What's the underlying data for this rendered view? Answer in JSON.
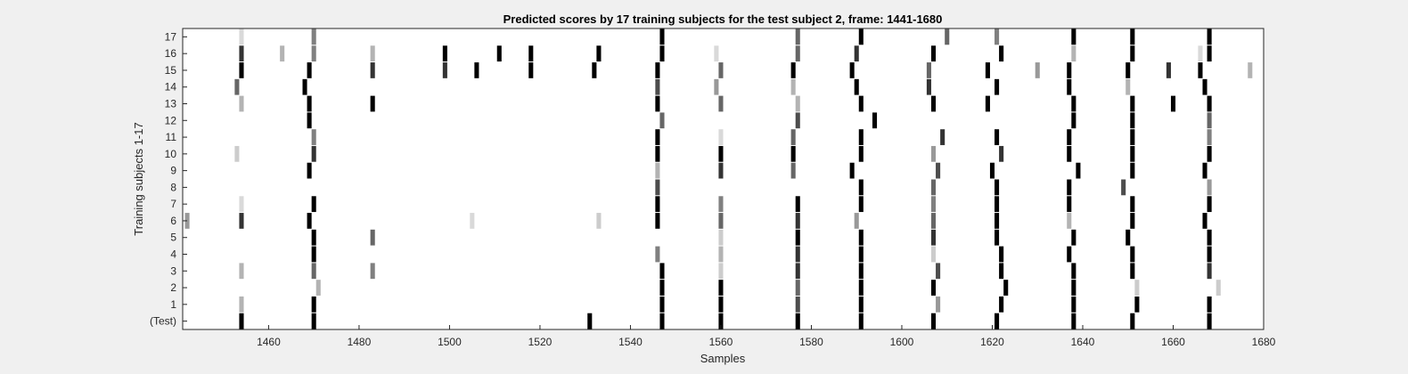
{
  "chart_data": {
    "type": "heatmap",
    "title": "Predicted scores by 17 training subjects for the test subject 2, frame: 1441-1680",
    "xlabel": "Samples",
    "ylabel": "Training subjects 1-17",
    "xlim": [
      1441,
      1680
    ],
    "xticks": [
      1460,
      1480,
      1500,
      1520,
      1540,
      1560,
      1580,
      1600,
      1620,
      1640,
      1660,
      1680
    ],
    "rows": [
      "(Test)",
      "1",
      "2",
      "3",
      "4",
      "5",
      "6",
      "7",
      "8",
      "9",
      "10",
      "11",
      "12",
      "13",
      "14",
      "15",
      "16",
      "17"
    ],
    "value_range": [
      0,
      1
    ],
    "colormap": "white-to-black (1 = black)",
    "grid": false,
    "cells": [
      [
        0,
        1454,
        1
      ],
      [
        0,
        1470,
        1
      ],
      [
        0,
        1531,
        1
      ],
      [
        0,
        1547,
        1
      ],
      [
        0,
        1560,
        1
      ],
      [
        0,
        1577,
        1
      ],
      [
        0,
        1591,
        1
      ],
      [
        0,
        1607,
        1
      ],
      [
        0,
        1621,
        1
      ],
      [
        0,
        1638,
        1
      ],
      [
        0,
        1651,
        1
      ],
      [
        0,
        1668,
        1
      ],
      [
        1,
        1454,
        0.3
      ],
      [
        1,
        1470,
        1
      ],
      [
        1,
        1547,
        1
      ],
      [
        1,
        1560,
        1
      ],
      [
        1,
        1577,
        0.7
      ],
      [
        1,
        1591,
        1
      ],
      [
        1,
        1608,
        0.4
      ],
      [
        1,
        1622,
        1
      ],
      [
        1,
        1638,
        1
      ],
      [
        1,
        1652,
        1
      ],
      [
        1,
        1668,
        1
      ],
      [
        2,
        1471,
        0.3
      ],
      [
        2,
        1547,
        1
      ],
      [
        2,
        1560,
        1
      ],
      [
        2,
        1577,
        0.6
      ],
      [
        2,
        1591,
        1
      ],
      [
        2,
        1607,
        1
      ],
      [
        2,
        1623,
        1
      ],
      [
        2,
        1638,
        1
      ],
      [
        2,
        1652,
        0.2
      ],
      [
        2,
        1670,
        0.2
      ],
      [
        3,
        1454,
        0.3
      ],
      [
        3,
        1470,
        0.6
      ],
      [
        3,
        1483,
        0.5
      ],
      [
        3,
        1547,
        1
      ],
      [
        3,
        1560,
        0.2
      ],
      [
        3,
        1577,
        0.8
      ],
      [
        3,
        1591,
        1
      ],
      [
        3,
        1608,
        0.7
      ],
      [
        3,
        1622,
        1
      ],
      [
        3,
        1638,
        1
      ],
      [
        3,
        1651,
        1
      ],
      [
        3,
        1668,
        0.8
      ],
      [
        4,
        1470,
        1
      ],
      [
        4,
        1546,
        0.5
      ],
      [
        4,
        1560,
        0.3
      ],
      [
        4,
        1577,
        0.8
      ],
      [
        4,
        1591,
        1
      ],
      [
        4,
        1607,
        0.2
      ],
      [
        4,
        1622,
        1
      ],
      [
        4,
        1637,
        1
      ],
      [
        4,
        1651,
        1
      ],
      [
        4,
        1668,
        1
      ],
      [
        5,
        1470,
        1
      ],
      [
        5,
        1483,
        0.6
      ],
      [
        5,
        1560,
        0.2
      ],
      [
        5,
        1577,
        1
      ],
      [
        5,
        1591,
        1
      ],
      [
        5,
        1607,
        0.8
      ],
      [
        5,
        1621,
        1
      ],
      [
        5,
        1638,
        1
      ],
      [
        5,
        1650,
        1
      ],
      [
        5,
        1668,
        1
      ],
      [
        6,
        1442,
        0.4
      ],
      [
        6,
        1454,
        0.8
      ],
      [
        6,
        1469,
        1
      ],
      [
        6,
        1505,
        0.15
      ],
      [
        6,
        1533,
        0.2
      ],
      [
        6,
        1546,
        1
      ],
      [
        6,
        1560,
        0.6
      ],
      [
        6,
        1577,
        0.8
      ],
      [
        6,
        1590,
        0.4
      ],
      [
        6,
        1607,
        0.6
      ],
      [
        6,
        1621,
        1
      ],
      [
        6,
        1637,
        0.3
      ],
      [
        6,
        1651,
        1
      ],
      [
        6,
        1667,
        1
      ],
      [
        7,
        1454,
        0.15
      ],
      [
        7,
        1470,
        1
      ],
      [
        7,
        1546,
        1
      ],
      [
        7,
        1560,
        0.5
      ],
      [
        7,
        1577,
        1
      ],
      [
        7,
        1591,
        1
      ],
      [
        7,
        1607,
        0.5
      ],
      [
        7,
        1621,
        1
      ],
      [
        7,
        1637,
        1
      ],
      [
        7,
        1651,
        1
      ],
      [
        7,
        1668,
        1
      ],
      [
        8,
        1546,
        0.7
      ],
      [
        8,
        1591,
        1
      ],
      [
        8,
        1607,
        0.6
      ],
      [
        8,
        1621,
        1
      ],
      [
        8,
        1637,
        1
      ],
      [
        8,
        1649,
        0.7
      ],
      [
        8,
        1668,
        0.4
      ],
      [
        9,
        1469,
        1
      ],
      [
        9,
        1546,
        0.3
      ],
      [
        9,
        1560,
        0.8
      ],
      [
        9,
        1576,
        0.6
      ],
      [
        9,
        1589,
        1
      ],
      [
        9,
        1608,
        0.7
      ],
      [
        9,
        1620,
        1
      ],
      [
        9,
        1639,
        1
      ],
      [
        9,
        1651,
        1
      ],
      [
        9,
        1667,
        1
      ],
      [
        10,
        1453,
        0.2
      ],
      [
        10,
        1470,
        0.8
      ],
      [
        10,
        1546,
        1
      ],
      [
        10,
        1560,
        1
      ],
      [
        10,
        1576,
        1
      ],
      [
        10,
        1591,
        1
      ],
      [
        10,
        1607,
        0.4
      ],
      [
        10,
        1622,
        0.8
      ],
      [
        10,
        1637,
        1
      ],
      [
        10,
        1651,
        1
      ],
      [
        10,
        1668,
        1
      ],
      [
        11,
        1470,
        0.5
      ],
      [
        11,
        1546,
        1
      ],
      [
        11,
        1560,
        0.15
      ],
      [
        11,
        1576,
        0.6
      ],
      [
        11,
        1591,
        1
      ],
      [
        11,
        1609,
        0.8
      ],
      [
        11,
        1621,
        1
      ],
      [
        11,
        1637,
        1
      ],
      [
        11,
        1651,
        1
      ],
      [
        11,
        1668,
        0.5
      ],
      [
        12,
        1469,
        1
      ],
      [
        12,
        1547,
        0.6
      ],
      [
        12,
        1577,
        0.7
      ],
      [
        12,
        1594,
        1
      ],
      [
        12,
        1638,
        1
      ],
      [
        12,
        1651,
        1
      ],
      [
        12,
        1668,
        0.6
      ],
      [
        13,
        1454,
        0.3
      ],
      [
        13,
        1469,
        1
      ],
      [
        13,
        1483,
        1
      ],
      [
        13,
        1546,
        1
      ],
      [
        13,
        1560,
        0.6
      ],
      [
        13,
        1577,
        0.3
      ],
      [
        13,
        1591,
        1
      ],
      [
        13,
        1607,
        1
      ],
      [
        13,
        1619,
        1
      ],
      [
        13,
        1638,
        1
      ],
      [
        13,
        1651,
        1
      ],
      [
        13,
        1660,
        1
      ],
      [
        13,
        1668,
        1
      ],
      [
        14,
        1453,
        0.6
      ],
      [
        14,
        1468,
        1
      ],
      [
        14,
        1546,
        0.7
      ],
      [
        14,
        1559,
        0.4
      ],
      [
        14,
        1576,
        0.3
      ],
      [
        14,
        1590,
        1
      ],
      [
        14,
        1606,
        0.8
      ],
      [
        14,
        1621,
        1
      ],
      [
        14,
        1637,
        1
      ],
      [
        14,
        1650,
        0.3
      ],
      [
        14,
        1667,
        1
      ],
      [
        15,
        1454,
        1
      ],
      [
        15,
        1469,
        1
      ],
      [
        15,
        1483,
        0.8
      ],
      [
        15,
        1499,
        0.8
      ],
      [
        15,
        1506,
        1
      ],
      [
        15,
        1518,
        1
      ],
      [
        15,
        1532,
        1
      ],
      [
        15,
        1546,
        1
      ],
      [
        15,
        1560,
        0.6
      ],
      [
        15,
        1576,
        1
      ],
      [
        15,
        1589,
        1
      ],
      [
        15,
        1606,
        0.6
      ],
      [
        15,
        1619,
        1
      ],
      [
        15,
        1630,
        0.4
      ],
      [
        15,
        1637,
        1
      ],
      [
        15,
        1650,
        1
      ],
      [
        15,
        1659,
        0.8
      ],
      [
        15,
        1666,
        1
      ],
      [
        15,
        1677,
        0.3
      ],
      [
        16,
        1454,
        0.8
      ],
      [
        16,
        1463,
        0.3
      ],
      [
        16,
        1470,
        0.5
      ],
      [
        16,
        1483,
        0.3
      ],
      [
        16,
        1499,
        1
      ],
      [
        16,
        1511,
        1
      ],
      [
        16,
        1518,
        1
      ],
      [
        16,
        1533,
        1
      ],
      [
        16,
        1547,
        1
      ],
      [
        16,
        1559,
        0.15
      ],
      [
        16,
        1577,
        0.6
      ],
      [
        16,
        1590,
        0.8
      ],
      [
        16,
        1607,
        1
      ],
      [
        16,
        1622,
        1
      ],
      [
        16,
        1638,
        0.3
      ],
      [
        16,
        1651,
        1
      ],
      [
        16,
        1666,
        0.15
      ],
      [
        16,
        1668,
        1
      ],
      [
        17,
        1454,
        0.15
      ],
      [
        17,
        1470,
        0.5
      ],
      [
        17,
        1547,
        1
      ],
      [
        17,
        1577,
        0.6
      ],
      [
        17,
        1591,
        1
      ],
      [
        17,
        1610,
        0.6
      ],
      [
        17,
        1621,
        0.5
      ],
      [
        17,
        1638,
        1
      ],
      [
        17,
        1651,
        1
      ],
      [
        17,
        1668,
        1
      ]
    ]
  }
}
